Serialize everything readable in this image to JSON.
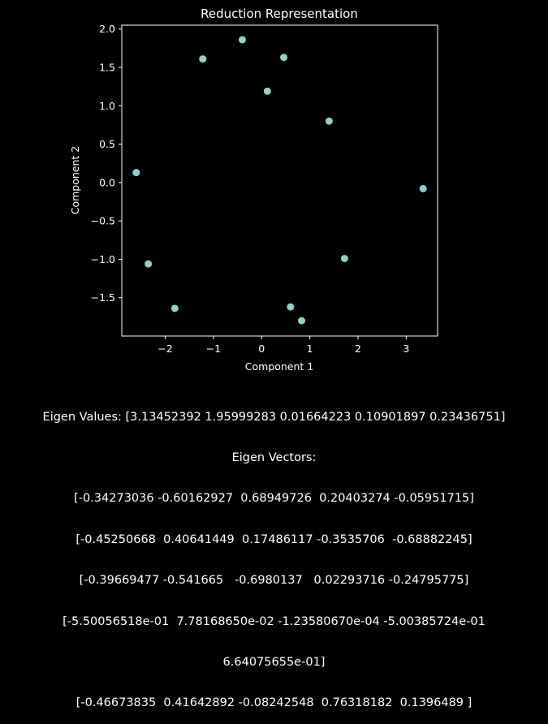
{
  "chart_data": {
    "type": "scatter",
    "title": "Reduction Representation",
    "xlabel": "Component 1",
    "ylabel": "Component 2",
    "xlim": [
      -2.9,
      3.65
    ],
    "ylim": [
      -2.0,
      2.05
    ],
    "xticks": [
      -2,
      -1,
      0,
      1,
      2,
      3
    ],
    "xtick_labels": [
      "−2",
      "−1",
      "0",
      "1",
      "2",
      "3"
    ],
    "yticks": [
      -1.5,
      -1.0,
      -0.5,
      0.0,
      0.5,
      1.0,
      1.5,
      2.0
    ],
    "ytick_labels": [
      "−1.5",
      "−1.0",
      "−0.5",
      "0.0",
      "0.5",
      "1.0",
      "1.5",
      "2.0"
    ],
    "grid": false,
    "point_color": "#8dd3c7",
    "background": "#000000",
    "foreground": "#ffffff",
    "points": [
      {
        "x": -0.4,
        "y": 1.86
      },
      {
        "x": -1.22,
        "y": 1.61
      },
      {
        "x": 0.46,
        "y": 1.63
      },
      {
        "x": 0.12,
        "y": 1.19
      },
      {
        "x": 1.4,
        "y": 0.8
      },
      {
        "x": -2.6,
        "y": 0.13
      },
      {
        "x": 3.35,
        "y": -0.08
      },
      {
        "x": -2.35,
        "y": -1.06
      },
      {
        "x": 1.72,
        "y": -0.99
      },
      {
        "x": -1.8,
        "y": -1.64
      },
      {
        "x": 0.6,
        "y": -1.62
      },
      {
        "x": 0.83,
        "y": -1.8
      }
    ]
  },
  "caption": {
    "lines": [
      "Eigen Values: [3.13452392 1.95999283 0.01664223 0.10901897 0.23436751]",
      "Eigen Vectors:",
      "[-0.34273036 -0.60162927  0.68949726  0.20403274 -0.05951715]",
      "[-0.45250668  0.40641449  0.17486117 -0.3535706  -0.68882245]",
      "[-0.39669477 -0.541665   -0.6980137   0.02293716 -0.24795775]",
      "[-5.50056518e-01  7.78168650e-02 -1.23580670e-04 -5.00385724e-01",
      "6.64075655e-01]",
      "[-0.46673835  0.41642892 -0.08242548  0.76318182  0.1396489 ]"
    ]
  }
}
